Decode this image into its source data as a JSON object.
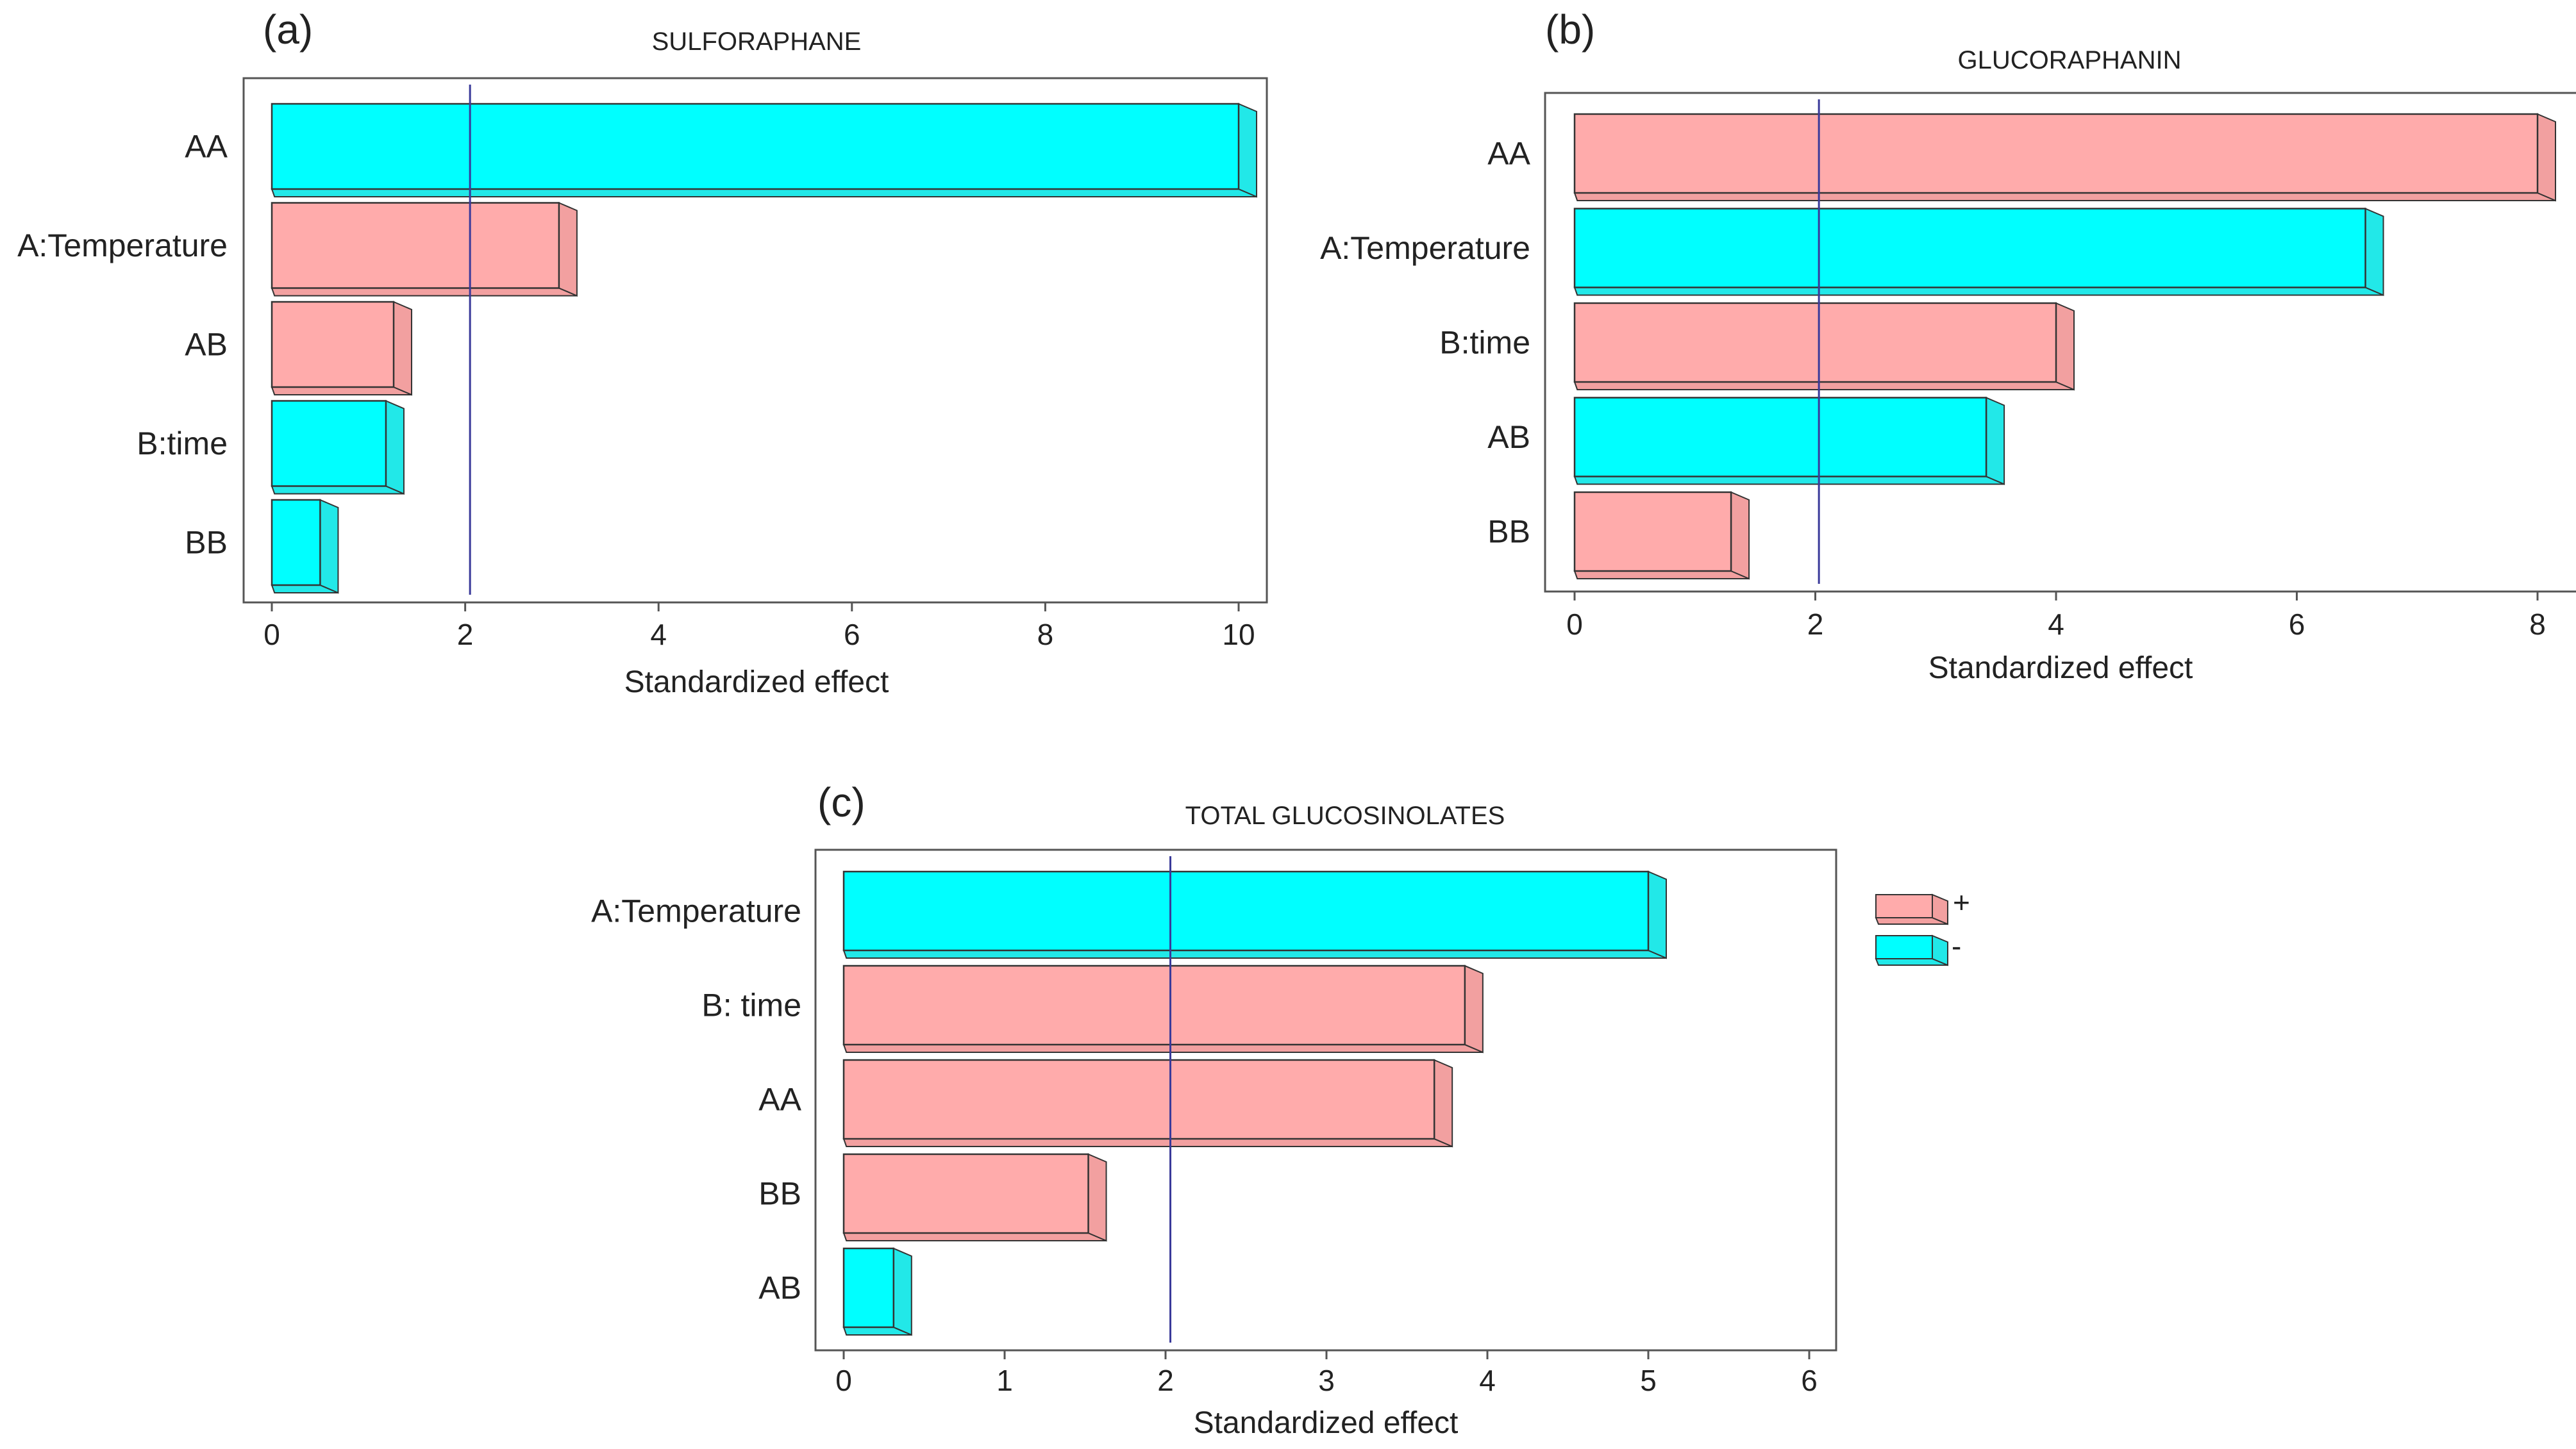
{
  "colors": {
    "positive": "#FFABAB",
    "negative": "#00FFFF",
    "reference_line": "#3A3A9A",
    "axis": "#555555"
  },
  "legend": {
    "items": [
      {
        "label": "+",
        "sign": "positive"
      },
      {
        "label": "-",
        "sign": "negative"
      }
    ]
  },
  "chart_data": [
    {
      "type": "bar",
      "panel": "(a)",
      "title": "SULFORAPHANE",
      "orientation": "horizontal",
      "categories": [
        "AA",
        "A:Temperature",
        "AB",
        "B:time",
        "BB"
      ],
      "values": [
        10.0,
        2.97,
        1.26,
        1.18,
        0.5
      ],
      "signs": [
        "negative",
        "positive",
        "positive",
        "negative",
        "negative"
      ],
      "xlabel": "Standardized effect",
      "ylabel": "",
      "xlim": [
        0,
        10
      ],
      "xticks": [
        0,
        2,
        4,
        6,
        8,
        10
      ],
      "reference_line": 2.05
    },
    {
      "type": "bar",
      "panel": "(b)",
      "title": "GLUCORAPHANIN",
      "orientation": "horizontal",
      "categories": [
        "AA",
        "A:Temperature",
        "B:time",
        "AB",
        "BB"
      ],
      "values": [
        8.0,
        6.57,
        4.0,
        3.42,
        1.3
      ],
      "signs": [
        "positive",
        "negative",
        "positive",
        "negative",
        "positive"
      ],
      "xlabel": "Standardized effect",
      "ylabel": "",
      "xlim": [
        0,
        8
      ],
      "xticks": [
        0,
        2,
        4,
        6,
        8
      ],
      "reference_line": 2.03
    },
    {
      "type": "bar",
      "panel": "(c)",
      "title": "TOTAL GLUCOSINOLATES",
      "orientation": "horizontal",
      "categories": [
        "A:Temperature",
        "B: time",
        "AA",
        "BB",
        "AB"
      ],
      "values": [
        5.0,
        3.86,
        3.67,
        1.52,
        0.31
      ],
      "signs": [
        "negative",
        "positive",
        "positive",
        "positive",
        "negative"
      ],
      "xlabel": "Standardized effect",
      "ylabel": "",
      "xlim": [
        0,
        6
      ],
      "xticks": [
        0,
        1,
        2,
        3,
        4,
        5,
        6
      ],
      "reference_line": 2.03
    }
  ]
}
